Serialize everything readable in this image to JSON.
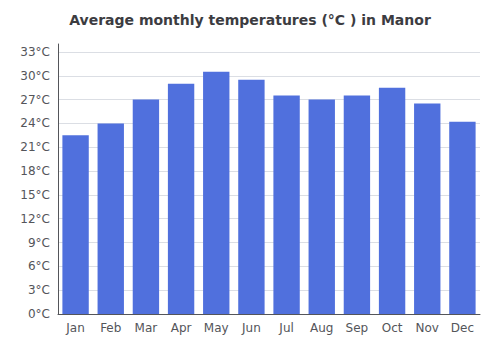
{
  "chart_data": {
    "type": "bar",
    "title": "Average monthly temperatures (°C ) in Manor",
    "categories": [
      "Jan",
      "Feb",
      "Mar",
      "Apr",
      "May",
      "Jun",
      "Jul",
      "Aug",
      "Sep",
      "Oct",
      "Nov",
      "Dec"
    ],
    "values": [
      22.5,
      24.0,
      27.0,
      29.0,
      30.5,
      29.5,
      27.5,
      27.0,
      27.5,
      28.5,
      26.5,
      24.2
    ],
    "ylim": [
      0,
      34
    ],
    "yticks": [
      {
        "value": 0,
        "label": "0°C"
      },
      {
        "value": 3,
        "label": "3°C"
      },
      {
        "value": 6,
        "label": "6°C"
      },
      {
        "value": 9,
        "label": "9°C"
      },
      {
        "value": 12,
        "label": "12°C"
      },
      {
        "value": 15,
        "label": "15°C"
      },
      {
        "value": 18,
        "label": "18°C"
      },
      {
        "value": 21,
        "label": "21°C"
      },
      {
        "value": 24,
        "label": "24°C"
      },
      {
        "value": 27,
        "label": "27°C"
      },
      {
        "value": 30,
        "label": "30°C"
      },
      {
        "value": 33,
        "label": "33°C"
      }
    ],
    "grid": true
  }
}
